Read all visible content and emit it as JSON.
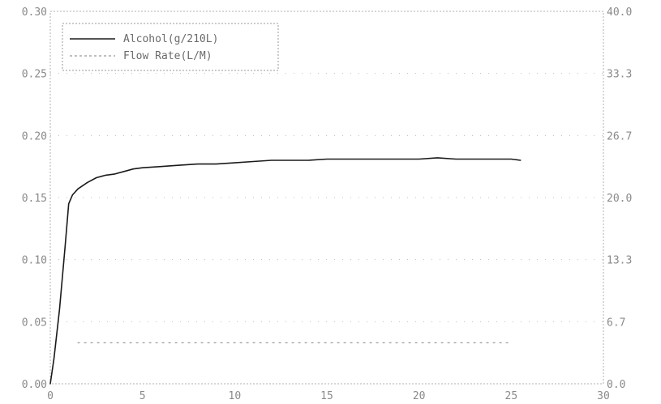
{
  "chart_data": {
    "type": "line",
    "title": "",
    "xlabel": "",
    "ylabel": "",
    "y2label": "",
    "xlim": [
      0,
      30
    ],
    "ylim": [
      0,
      0.3
    ],
    "y2lim": [
      0,
      40.0
    ],
    "x_ticks": [
      "0",
      "5",
      "10",
      "15",
      "20",
      "25",
      "30"
    ],
    "y_ticks": [
      "0.00",
      "0.05",
      "0.10",
      "0.15",
      "0.20",
      "0.25",
      "0.30"
    ],
    "y2_ticks": [
      "0.0",
      "6.7",
      "13.3",
      "20.0",
      "26.7",
      "33.3",
      "40.0"
    ],
    "grid": true,
    "legend_position": "top-left",
    "series": [
      {
        "name": "Alcohol(g/210L)",
        "axis": "left",
        "color": "#1a1a1a",
        "style": "solid",
        "x": [
          0,
          0.2,
          0.5,
          0.8,
          1.0,
          1.2,
          1.5,
          2.0,
          2.5,
          3.0,
          3.5,
          4.0,
          4.5,
          5.0,
          6.0,
          7.0,
          8.0,
          9.0,
          10.0,
          11.0,
          12.0,
          13.0,
          14.0,
          15.0,
          16.0,
          17.0,
          18.0,
          19.0,
          20.0,
          21.0,
          22.0,
          23.0,
          24.0,
          25.0,
          25.5
        ],
        "y": [
          0.0,
          0.02,
          0.06,
          0.11,
          0.145,
          0.152,
          0.157,
          0.162,
          0.166,
          0.168,
          0.169,
          0.171,
          0.173,
          0.174,
          0.175,
          0.176,
          0.177,
          0.177,
          0.178,
          0.179,
          0.18,
          0.18,
          0.18,
          0.181,
          0.181,
          0.181,
          0.181,
          0.181,
          0.181,
          0.182,
          0.181,
          0.181,
          0.181,
          0.181,
          0.18
        ]
      },
      {
        "name": "Flow Rate(L/M)",
        "axis": "right",
        "color": "#9a9a9a",
        "style": "dotted",
        "x": [
          1.5,
          3,
          5,
          7,
          9,
          11,
          13,
          15,
          17,
          19,
          21,
          23,
          25
        ],
        "y": [
          4.4,
          4.4,
          4.4,
          4.4,
          4.4,
          4.4,
          4.4,
          4.4,
          4.4,
          4.4,
          4.4,
          4.4,
          4.4
        ]
      }
    ]
  }
}
